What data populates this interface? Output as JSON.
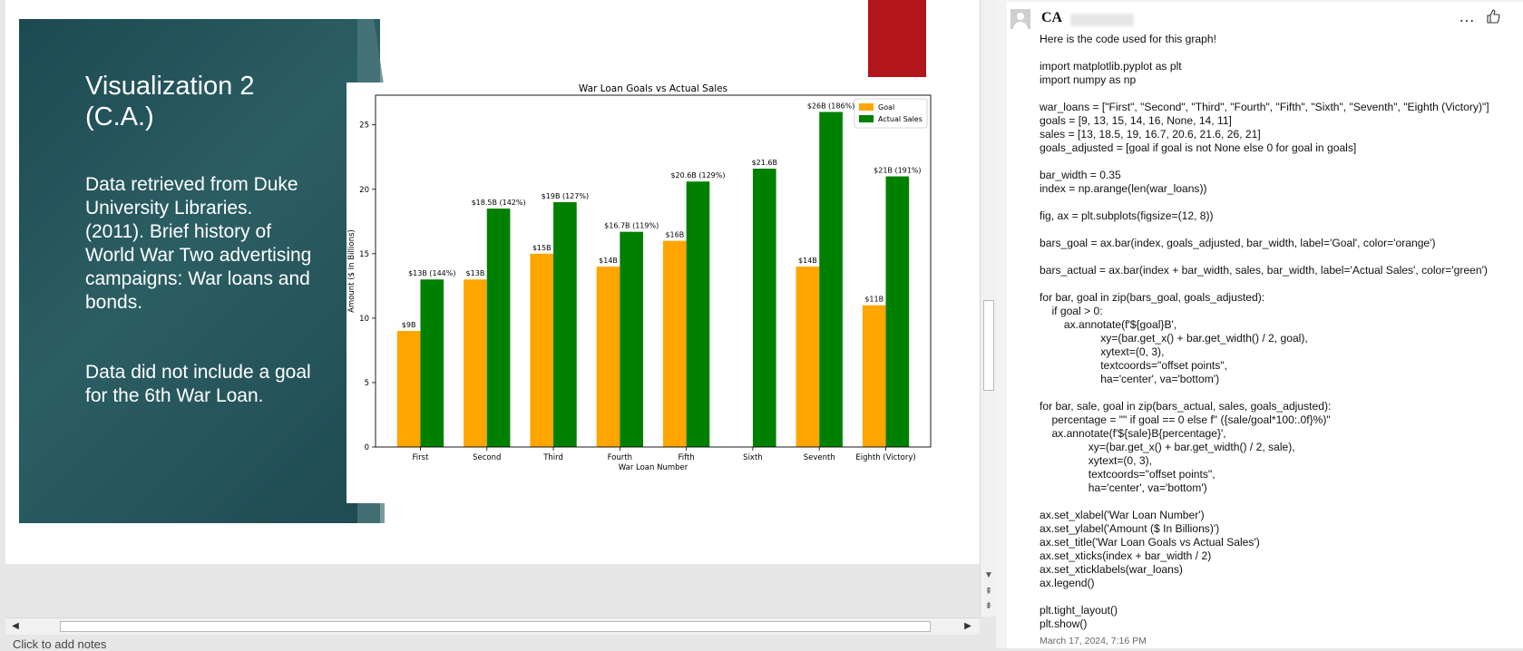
{
  "slide": {
    "title_line1": "Visualization 2",
    "title_line2": "(C.A.)",
    "paragraph1": "Data retrieved from Duke University Libraries. (2011). Brief history of World War Two advertising campaigns: War loans and bonds.",
    "paragraph2": "Data did not include a goal for the 6th War Loan.",
    "accent_color": "#2b5e63",
    "red_shape_color": "#b2151a"
  },
  "chart_data": {
    "type": "bar",
    "title": "War Loan Goals vs Actual Sales",
    "xlabel": "War Loan Number",
    "ylabel": "Amount ($ In Billions)",
    "ylim": [
      0,
      27.3
    ],
    "yticks": [
      0,
      5,
      10,
      15,
      20,
      25
    ],
    "categories": [
      "First",
      "Second",
      "Third",
      "Fourth",
      "Fifth",
      "Sixth",
      "Seventh",
      "Eighth (Victory)"
    ],
    "series": [
      {
        "name": "Goal",
        "color": "#ffa500",
        "values": [
          9,
          13,
          15,
          14,
          16,
          0,
          14,
          11
        ],
        "labels": [
          "$9B",
          "$13B",
          "$15B",
          "$14B",
          "$16B",
          "",
          "$14B",
          "$11B"
        ]
      },
      {
        "name": "Actual Sales",
        "color": "#008000",
        "values": [
          13,
          18.5,
          19,
          16.7,
          20.6,
          21.6,
          26,
          21
        ],
        "labels": [
          "$13B (144%)",
          "$18.5B (142%)",
          "$19B (127%)",
          "$16.7B (119%)",
          "$20.6B (129%)",
          "$21.6B",
          "$26B (186%)",
          "$21B (191%)"
        ]
      }
    ],
    "legend_position": "top-right"
  },
  "scrollbars": {
    "up_arrow": "▲",
    "down_arrow": "▼",
    "left_arrow": "◀",
    "right_arrow": "▶",
    "prev_slide": "⇞",
    "next_slide": "⇟"
  },
  "status": {
    "notes_hint": "Click to add notes"
  },
  "comment": {
    "author": "CA",
    "more_icon": "…",
    "date": "March 17, 2024, 7:16 PM",
    "lines": [
      "Here is the code used for this graph!",
      "",
      "import matplotlib.pyplot as plt",
      "import numpy as np",
      "",
      "war_loans = [\"First\", \"Second\", \"Third\", \"Fourth\", \"Fifth\", \"Sixth\", \"Seventh\", \"Eighth (Victory)\"]",
      "goals = [9, 13, 15, 14, 16, None, 14, 11]",
      "sales = [13, 18.5, 19, 16.7, 20.6, 21.6, 26, 21]",
      "goals_adjusted = [goal if goal is not None else 0 for goal in goals]",
      "",
      "bar_width = 0.35",
      "index = np.arange(len(war_loans))",
      "",
      "fig, ax = plt.subplots(figsize=(12, 8))",
      "",
      "bars_goal = ax.bar(index, goals_adjusted, bar_width, label='Goal', color='orange')",
      "",
      "bars_actual = ax.bar(index + bar_width, sales, bar_width, label='Actual Sales', color='green')",
      "",
      "for bar, goal in zip(bars_goal, goals_adjusted):",
      "    if goal > 0:",
      "        ax.annotate(f'${goal}B',",
      "                    xy=(bar.get_x() + bar.get_width() / 2, goal),",
      "                    xytext=(0, 3),",
      "                    textcoords=\"offset points\",",
      "                    ha='center', va='bottom')",
      "",
      "for bar, sale, goal in zip(bars_actual, sales, goals_adjusted):",
      "    percentage = \"\" if goal == 0 else f\" ({sale/goal*100:.0f}%)\"",
      "    ax.annotate(f'${sale}B{percentage}',",
      "                xy=(bar.get_x() + bar.get_width() / 2, sale),",
      "                xytext=(0, 3),",
      "                textcoords=\"offset points\",",
      "                ha='center', va='bottom')",
      "",
      "ax.set_xlabel('War Loan Number')",
      "ax.set_ylabel('Amount ($ In Billions)')",
      "ax.set_title('War Loan Goals vs Actual Sales')",
      "ax.set_xticks(index + bar_width / 2)",
      "ax.set_xticklabels(war_loans)",
      "ax.legend()",
      "",
      "plt.tight_layout()",
      "plt.show()"
    ]
  }
}
